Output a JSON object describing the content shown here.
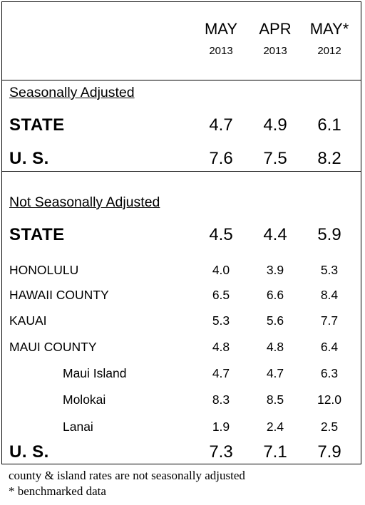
{
  "headers": [
    {
      "month": "MAY",
      "year": "2013"
    },
    {
      "month": "APR",
      "year": "2013"
    },
    {
      "month": "MAY*",
      "year": "2012"
    }
  ],
  "seasonally_adjusted": {
    "title": "Seasonally Adjusted",
    "rows": [
      {
        "label": "STATE",
        "values": [
          "4.7",
          "4.9",
          "6.1"
        ]
      },
      {
        "label": "U. S.",
        "values": [
          "7.6",
          "7.5",
          "8.2"
        ]
      }
    ]
  },
  "not_seasonally_adjusted": {
    "title": "Not Seasonally Adjusted",
    "state": {
      "label": "STATE",
      "values": [
        "4.5",
        "4.4",
        "5.9"
      ]
    },
    "areas": [
      {
        "label": "HONOLULU",
        "values": [
          "4.0",
          "3.9",
          "5.3"
        ]
      },
      {
        "label": "HAWAII COUNTY",
        "values": [
          "6.5",
          "6.6",
          "8.4"
        ]
      },
      {
        "label": "KAUAI",
        "values": [
          "5.3",
          "5.6",
          "7.7"
        ]
      },
      {
        "label": "MAUI COUNTY",
        "values": [
          "4.8",
          "4.8",
          "6.4"
        ]
      },
      {
        "label": "Maui Island",
        "values": [
          "4.7",
          "4.7",
          "6.3"
        ]
      },
      {
        "label": "Molokai",
        "values": [
          "8.3",
          "8.5",
          "12.0"
        ]
      },
      {
        "label": "Lanai",
        "values": [
          "1.9",
          "2.4",
          "2.5"
        ]
      }
    ],
    "us": {
      "label": "U. S.",
      "values": [
        "7.3",
        "7.1",
        "7.9"
      ]
    }
  },
  "footnotes": [
    "county & island rates are not seasonally adjusted",
    "* benchmarked data"
  ]
}
